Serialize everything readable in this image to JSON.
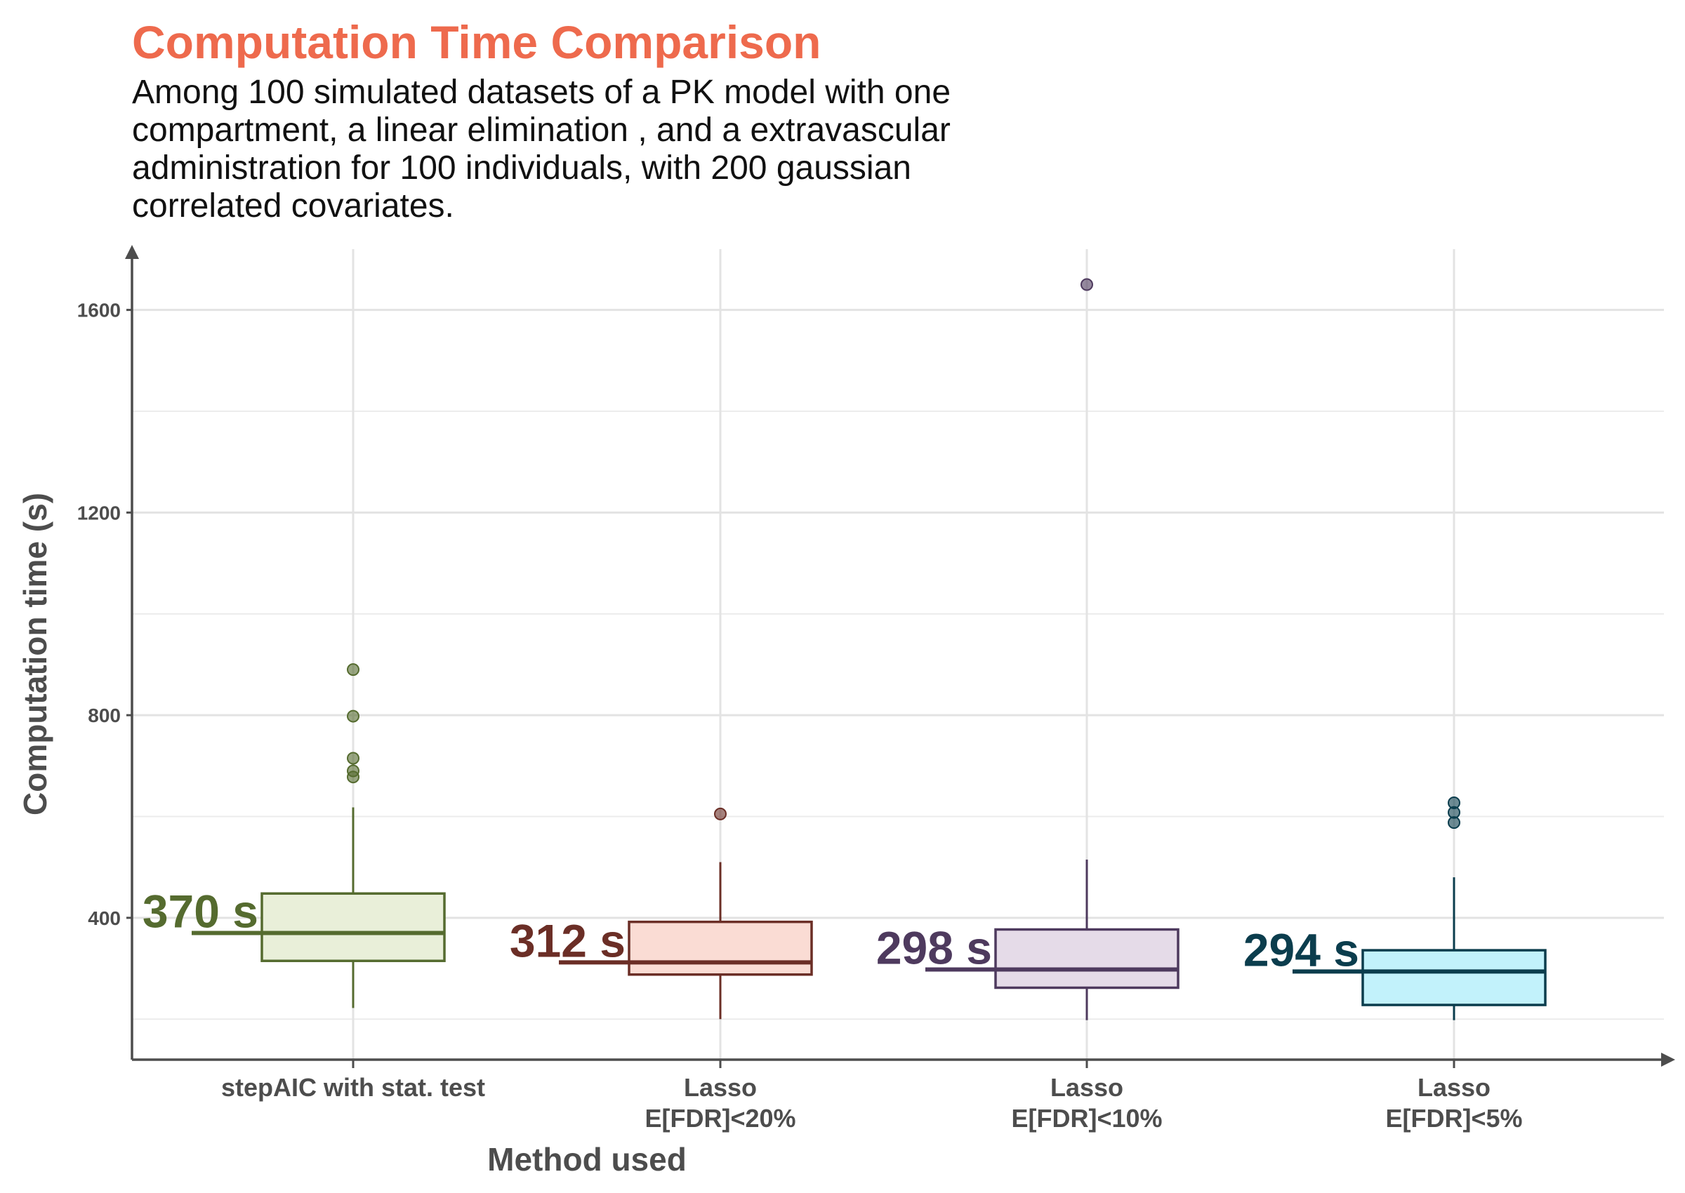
{
  "chart_data": {
    "type": "boxplot",
    "title": "Computation Time Comparison",
    "subtitle": "Among 100 simulated datasets of a PK model with one compartment, a linear elimination , and a extravascular administration for 100 individuals, with 200 gaussian correlated covariates.",
    "xlabel": "Method used",
    "ylabel": "Computation time (s)",
    "ylim": [
      120,
      1720
    ],
    "yticks": [
      "400",
      "800",
      "1200",
      "1600"
    ],
    "grid": true,
    "categories": [
      {
        "label_lines": [
          "stepAIC with stat. test"
        ],
        "color": "#556b2f",
        "fill": "#e9efd9",
        "median": 370,
        "q1": 315,
        "q3": 448,
        "whisker_low": 222,
        "whisker_high": 618,
        "outliers": [
          890,
          798,
          715,
          690,
          678
        ],
        "median_label": "370 s"
      },
      {
        "label_lines": [
          "Lasso",
          "E[FDR]<20%"
        ],
        "color": "#6b2e26",
        "fill": "#fadcd4",
        "median": 312,
        "q1": 288,
        "q3": 392,
        "whisker_low": 200,
        "whisker_high": 510,
        "outliers": [
          605
        ],
        "median_label": "312 s"
      },
      {
        "label_lines": [
          "Lasso",
          "E[FDR]<10%"
        ],
        "color": "#4e3a5e",
        "fill": "#e5dbe8",
        "median": 298,
        "q1": 262,
        "q3": 377,
        "whisker_low": 198,
        "whisker_high": 515,
        "outliers": [
          1650
        ],
        "median_label": "298 s"
      },
      {
        "label_lines": [
          "Lasso",
          "E[FDR]<5%"
        ],
        "color": "#0b3d4d",
        "fill": "#c2f2fb",
        "median": 294,
        "q1": 228,
        "q3": 336,
        "whisker_low": 198,
        "whisker_high": 480,
        "outliers": [
          627,
          608,
          588
        ],
        "median_label": "294 s"
      }
    ]
  }
}
